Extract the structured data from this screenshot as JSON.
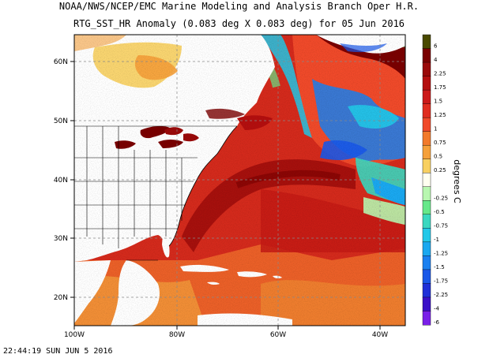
{
  "title_line1": "NOAA/NWS/NCEP/EMC Marine Modeling and Analysis Branch Oper H.R.",
  "title_line2": "RTG_SST_HR Anomaly (0.083 deg X 0.083 deg) for 05 Jun 2016",
  "timestamp": "22:44:19  SUN JUN 5 2016",
  "map": {
    "lon_labels": [
      "100W",
      "80W",
      "60W",
      "40W"
    ],
    "lat_labels": [
      "60N",
      "50N",
      "40N",
      "30N",
      "20N"
    ],
    "lon_range": [
      -100,
      -35
    ],
    "lat_range": [
      15,
      65
    ]
  },
  "colorbar": {
    "unit_label": "degrees C",
    "levels": [
      {
        "label": "6",
        "color": "#4a4a00"
      },
      {
        "label": "4",
        "color": "#7a0000"
      },
      {
        "label": "2.25",
        "color": "#9a0a0a"
      },
      {
        "label": "1.75",
        "color": "#b40f0f"
      },
      {
        "label": "1.5",
        "color": "#cc1a1a"
      },
      {
        "label": "1.25",
        "color": "#e02d20"
      },
      {
        "label": "1",
        "color": "#f04a2a"
      },
      {
        "label": "0.75",
        "color": "#f27a2a"
      },
      {
        "label": "0.5",
        "color": "#f5a03a"
      },
      {
        "label": "0.25",
        "color": "#f8d060"
      },
      {
        "label": "",
        "color": "#fffff0"
      },
      {
        "label": "-0.25",
        "color": "#b8f7b0"
      },
      {
        "label": "-0.5",
        "color": "#66e88a"
      },
      {
        "label": "-0.75",
        "color": "#3ad8c0"
      },
      {
        "label": "-1",
        "color": "#22c8e8"
      },
      {
        "label": "-1.25",
        "color": "#1aa8f0"
      },
      {
        "label": "-1.5",
        "color": "#1a80f0"
      },
      {
        "label": "-1.75",
        "color": "#1a58e8"
      },
      {
        "label": "-2.25",
        "color": "#2030d8"
      },
      {
        "label": "-4",
        "color": "#3a10c8"
      },
      {
        "label": "-6",
        "color": "#7a20e8"
      }
    ]
  }
}
